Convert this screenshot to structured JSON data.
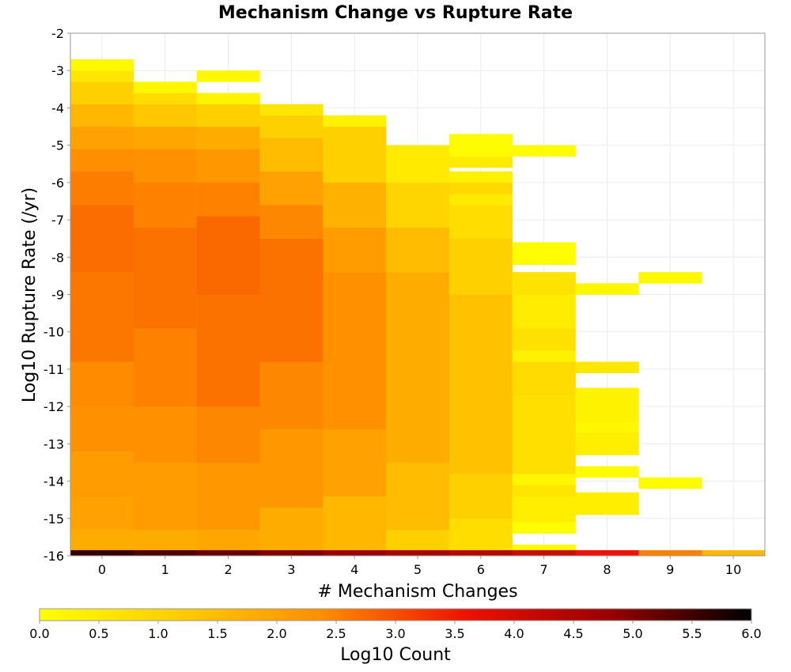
{
  "chart_data": {
    "type": "heatmap",
    "title": "Mechanism Change vs Rupture Rate",
    "xlabel": "# Mechanism Changes",
    "ylabel": "Log10 Rupture Rate (/yr)",
    "xlim": [
      -0.5,
      10.5
    ],
    "ylim": [
      -16,
      -2
    ],
    "x_ticks": [
      "0",
      "1",
      "2",
      "3",
      "4",
      "5",
      "6",
      "7",
      "8",
      "9",
      "10"
    ],
    "y_ticks": [
      "-2",
      "-3",
      "-4",
      "-5",
      "-6",
      "-7",
      "-8",
      "-9",
      "-10",
      "-11",
      "-12",
      "-13",
      "-14",
      "-15",
      "-16"
    ],
    "y_bin_width": 0.3,
    "colorbar": {
      "label": "Log10 Count",
      "range": [
        0.0,
        6.0
      ],
      "ticks": [
        "0.0",
        "0.5",
        "1.0",
        "1.5",
        "2.0",
        "2.5",
        "3.0",
        "3.5",
        "4.0",
        "4.5",
        "5.0",
        "5.5",
        "6.0"
      ],
      "colormap": [
        "#ffff00",
        "#ffcc00",
        "#ff8c00",
        "#ee1100",
        "#9a0000",
        "#000000"
      ]
    },
    "grid": true,
    "columns": [
      {
        "x": 0,
        "bins": [
          {
            "y0": -16.0,
            "y1": -15.3,
            "v": 1.8
          },
          {
            "y0": -15.3,
            "y1": -14.4,
            "v": 2.0
          },
          {
            "y0": -14.4,
            "y1": -13.2,
            "v": 2.1
          },
          {
            "y0": -13.2,
            "y1": -12.0,
            "v": 2.3
          },
          {
            "y0": -12.0,
            "y1": -10.8,
            "v": 2.4
          },
          {
            "y0": -10.8,
            "y1": -8.4,
            "v": 2.6
          },
          {
            "y0": -8.4,
            "y1": -6.6,
            "v": 2.7
          },
          {
            "y0": -6.6,
            "y1": -5.7,
            "v": 2.55
          },
          {
            "y0": -5.7,
            "y1": -5.1,
            "v": 2.35
          },
          {
            "y0": -5.1,
            "y1": -4.5,
            "v": 2.0
          },
          {
            "y0": -4.5,
            "y1": -3.9,
            "v": 1.6
          },
          {
            "y0": -3.9,
            "y1": -3.3,
            "v": 1.1
          },
          {
            "y0": -3.3,
            "y1": -3.0,
            "v": 0.6
          },
          {
            "y0": -3.0,
            "y1": -2.7,
            "v": 0.15
          }
        ]
      },
      {
        "x": 1,
        "bins": [
          {
            "y0": -16.0,
            "y1": -15.3,
            "v": 1.8
          },
          {
            "y0": -15.3,
            "y1": -13.5,
            "v": 2.1
          },
          {
            "y0": -13.5,
            "y1": -12.0,
            "v": 2.3
          },
          {
            "y0": -12.0,
            "y1": -9.9,
            "v": 2.5
          },
          {
            "y0": -9.9,
            "y1": -7.2,
            "v": 2.65
          },
          {
            "y0": -7.2,
            "y1": -6.0,
            "v": 2.5
          },
          {
            "y0": -6.0,
            "y1": -5.1,
            "v": 2.3
          },
          {
            "y0": -5.1,
            "y1": -4.5,
            "v": 1.9
          },
          {
            "y0": -4.5,
            "y1": -3.9,
            "v": 1.3
          },
          {
            "y0": -3.9,
            "y1": -3.6,
            "v": 0.8
          },
          {
            "y0": -3.6,
            "y1": -3.3,
            "v": 0.2
          }
        ]
      },
      {
        "x": 2,
        "bins": [
          {
            "y0": -16.0,
            "y1": -15.3,
            "v": 1.9
          },
          {
            "y0": -15.3,
            "y1": -13.5,
            "v": 2.2
          },
          {
            "y0": -13.5,
            "y1": -12.0,
            "v": 2.45
          },
          {
            "y0": -12.0,
            "y1": -9.0,
            "v": 2.65
          },
          {
            "y0": -9.0,
            "y1": -6.9,
            "v": 2.75
          },
          {
            "y0": -6.9,
            "y1": -6.0,
            "v": 2.5
          },
          {
            "y0": -6.0,
            "y1": -5.1,
            "v": 2.2
          },
          {
            "y0": -5.1,
            "y1": -4.5,
            "v": 1.8
          },
          {
            "y0": -4.5,
            "y1": -3.9,
            "v": 1.1
          },
          {
            "y0": -3.9,
            "y1": -3.6,
            "v": 0.25
          },
          {
            "y0": -3.3,
            "y1": -3.0,
            "v": 0.15
          }
        ]
      },
      {
        "x": 3,
        "bins": [
          {
            "y0": -16.0,
            "y1": -14.7,
            "v": 1.8
          },
          {
            "y0": -14.7,
            "y1": -12.6,
            "v": 2.2
          },
          {
            "y0": -12.6,
            "y1": -10.8,
            "v": 2.45
          },
          {
            "y0": -10.8,
            "y1": -7.5,
            "v": 2.65
          },
          {
            "y0": -7.5,
            "y1": -6.6,
            "v": 2.45
          },
          {
            "y0": -6.6,
            "y1": -5.7,
            "v": 2.0
          },
          {
            "y0": -5.7,
            "y1": -4.8,
            "v": 1.5
          },
          {
            "y0": -4.8,
            "y1": -4.2,
            "v": 1.1
          },
          {
            "y0": -4.2,
            "y1": -3.9,
            "v": 0.6
          }
        ]
      },
      {
        "x": 4,
        "bins": [
          {
            "y0": -16.0,
            "y1": -14.4,
            "v": 1.6
          },
          {
            "y0": -14.4,
            "y1": -12.6,
            "v": 2.0
          },
          {
            "y0": -12.6,
            "y1": -8.4,
            "v": 2.3
          },
          {
            "y0": -8.4,
            "y1": -7.2,
            "v": 2.1
          },
          {
            "y0": -7.2,
            "y1": -6.0,
            "v": 1.7
          },
          {
            "y0": -6.0,
            "y1": -4.5,
            "v": 1.1
          },
          {
            "y0": -4.5,
            "y1": -4.2,
            "v": 0.3
          }
        ]
      },
      {
        "x": 5,
        "bins": [
          {
            "y0": -16.0,
            "y1": -15.3,
            "v": 1.1
          },
          {
            "y0": -15.3,
            "y1": -13.5,
            "v": 1.5
          },
          {
            "y0": -13.5,
            "y1": -8.4,
            "v": 1.8
          },
          {
            "y0": -8.4,
            "y1": -7.2,
            "v": 1.5
          },
          {
            "y0": -7.2,
            "y1": -6.0,
            "v": 1.0
          },
          {
            "y0": -6.0,
            "y1": -5.0,
            "v": 0.5
          }
        ]
      },
      {
        "x": 6,
        "bins": [
          {
            "y0": -16.0,
            "y1": -15.0,
            "v": 0.8
          },
          {
            "y0": -15.0,
            "y1": -13.8,
            "v": 1.1
          },
          {
            "y0": -13.8,
            "y1": -9.0,
            "v": 1.4
          },
          {
            "y0": -9.0,
            "y1": -7.5,
            "v": 1.1
          },
          {
            "y0": -7.5,
            "y1": -6.6,
            "v": 0.8
          },
          {
            "y0": -6.6,
            "y1": -6.3,
            "v": 0.5
          },
          {
            "y0": -6.3,
            "y1": -6.0,
            "v": 0.9
          },
          {
            "y0": -6.0,
            "y1": -5.7,
            "v": 0.3
          },
          {
            "y0": -5.6,
            "y1": -5.3,
            "v": 0.5
          },
          {
            "y0": -5.3,
            "y1": -4.7,
            "v": 0.1
          }
        ]
      },
      {
        "x": 7,
        "bins": [
          {
            "y0": -16.0,
            "y1": -15.7,
            "v": 0.1
          },
          {
            "y0": -15.4,
            "y1": -15.1,
            "v": 0.05
          },
          {
            "y0": -15.1,
            "y1": -14.4,
            "v": 0.4
          },
          {
            "y0": -14.4,
            "y1": -14.1,
            "v": 0.6
          },
          {
            "y0": -14.1,
            "y1": -13.8,
            "v": 0.2
          },
          {
            "y0": -13.8,
            "y1": -11.7,
            "v": 0.75
          },
          {
            "y0": -11.7,
            "y1": -10.8,
            "v": 0.85
          },
          {
            "y0": -10.8,
            "y1": -10.5,
            "v": 0.3
          },
          {
            "y0": -10.5,
            "y1": -9.9,
            "v": 0.7
          },
          {
            "y0": -9.9,
            "y1": -9.0,
            "v": 0.45
          },
          {
            "y0": -9.0,
            "y1": -8.4,
            "v": 0.65
          },
          {
            "y0": -8.2,
            "y1": -7.6,
            "v": 0.05
          },
          {
            "y0": -5.3,
            "y1": -5.0,
            "v": 0.1
          }
        ]
      },
      {
        "x": 8,
        "bins": [
          {
            "y0": -14.9,
            "y1": -14.3,
            "v": 0.4
          },
          {
            "y0": -13.9,
            "y1": -13.6,
            "v": 0.1
          },
          {
            "y0": -13.3,
            "y1": -12.7,
            "v": 0.4
          },
          {
            "y0": -12.7,
            "y1": -12.4,
            "v": 0.2
          },
          {
            "y0": -12.4,
            "y1": -11.5,
            "v": 0.3
          },
          {
            "y0": -11.1,
            "y1": -10.8,
            "v": 0.55
          },
          {
            "y0": -9.0,
            "y1": -8.7,
            "v": 0.2
          }
        ]
      },
      {
        "x": 9,
        "bins": [
          {
            "y0": -14.2,
            "y1": -13.9,
            "v": 0.1
          },
          {
            "y0": -8.7,
            "y1": -8.4,
            "v": 0.15
          }
        ]
      }
    ],
    "baseline": {
      "y0": -16.0,
      "y1": -15.85,
      "values": [
        {
          "x": 0,
          "v": 5.6
        },
        {
          "x": 1,
          "v": 5.4
        },
        {
          "x": 2,
          "v": 5.2
        },
        {
          "x": 3,
          "v": 5.0
        },
        {
          "x": 4,
          "v": 4.8
        },
        {
          "x": 5,
          "v": 4.6
        },
        {
          "x": 6,
          "v": 4.4
        },
        {
          "x": 7,
          "v": 4.1
        },
        {
          "x": 8,
          "v": 3.6
        },
        {
          "x": 9,
          "v": 2.5
        },
        {
          "x": 10,
          "v": 1.6
        }
      ]
    }
  }
}
